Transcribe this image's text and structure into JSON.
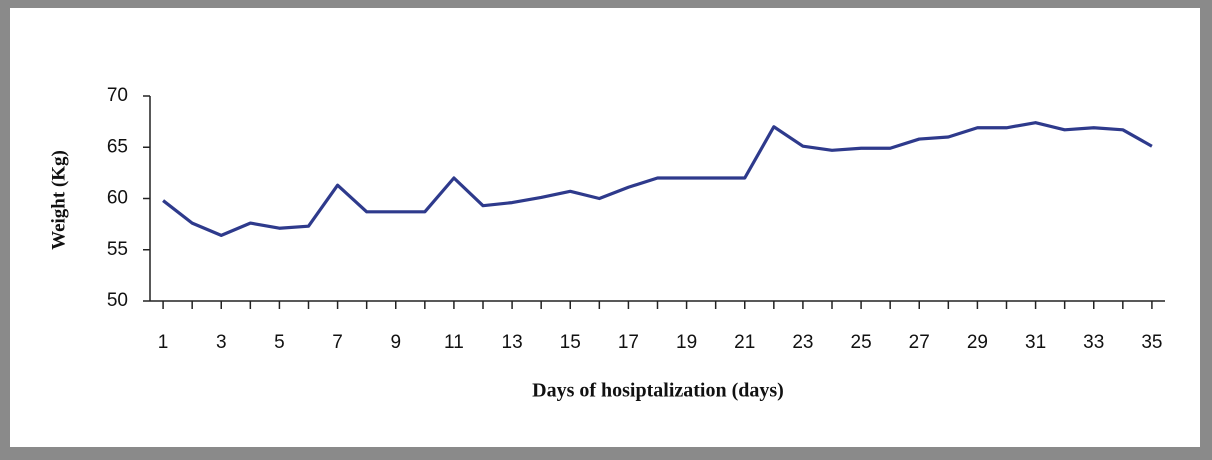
{
  "chart_data": {
    "type": "line",
    "xlabel": "Days of hosiptalization (days)",
    "ylabel": "Weight (Kg)",
    "x": [
      1,
      2,
      3,
      4,
      5,
      6,
      7,
      8,
      9,
      10,
      11,
      12,
      13,
      14,
      15,
      16,
      17,
      18,
      19,
      20,
      21,
      22,
      23,
      24,
      25,
      26,
      27,
      28,
      29,
      30,
      31,
      32,
      33,
      34,
      35
    ],
    "series": [
      {
        "color": "#2e3a8c",
        "values": [
          59.8,
          57.6,
          56.4,
          57.6,
          57.1,
          57.3,
          61.3,
          58.7,
          58.7,
          58.7,
          62.0,
          59.3,
          59.6,
          60.1,
          60.7,
          60.0,
          61.1,
          62.0,
          62.0,
          62.0,
          62.0,
          67.0,
          65.1,
          64.7,
          64.9,
          64.9,
          65.8,
          66.0,
          66.9,
          66.9,
          67.4,
          66.7,
          66.9,
          66.7,
          65.1
        ]
      }
    ],
    "xlim": [
      0.55,
      35.45
    ],
    "xticks": [
      1,
      3,
      5,
      7,
      9,
      11,
      13,
      15,
      17,
      19,
      21,
      23,
      25,
      27,
      29,
      31,
      33,
      35
    ],
    "ylim": [
      50,
      70
    ],
    "yticks": [
      50,
      55,
      60,
      65,
      70
    ],
    "grid": false
  }
}
